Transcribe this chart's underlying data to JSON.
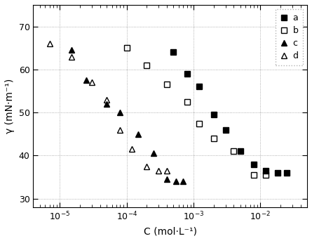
{
  "series_a": {
    "x": [
      0.0005,
      0.0008,
      0.0012,
      0.002,
      0.003,
      0.005,
      0.008,
      0.012,
      0.018,
      0.025
    ],
    "y": [
      64.0,
      59.0,
      56.0,
      49.5,
      46.0,
      41.0,
      38.0,
      36.5,
      36.0,
      36.0
    ],
    "marker": "s",
    "filled": true,
    "label": "a"
  },
  "series_b": {
    "x": [
      0.0001,
      0.0002,
      0.0004,
      0.0008,
      0.0012,
      0.002,
      0.004,
      0.008,
      0.012
    ],
    "y": [
      65.0,
      61.0,
      56.5,
      52.5,
      47.5,
      44.0,
      41.0,
      35.5,
      35.5
    ],
    "marker": "s",
    "filled": false,
    "label": "b"
  },
  "series_c": {
    "x": [
      1.5e-05,
      2.5e-05,
      5e-05,
      8e-05,
      0.00015,
      0.00025,
      0.0004,
      0.00055,
      0.0007
    ],
    "y": [
      64.5,
      57.5,
      52.0,
      50.0,
      45.0,
      40.5,
      34.5,
      34.0,
      34.0
    ],
    "marker": "^",
    "filled": true,
    "label": "c"
  },
  "series_d": {
    "x": [
      7e-06,
      1.5e-05,
      3e-05,
      5e-05,
      8e-05,
      0.00012,
      0.0002,
      0.0003,
      0.0004
    ],
    "y": [
      66.0,
      63.0,
      57.0,
      53.0,
      46.0,
      41.5,
      37.5,
      36.5,
      36.5
    ],
    "marker": "^",
    "filled": false,
    "label": "d"
  },
  "xlabel": "C (mol·L⁻¹)",
  "ylabel": "γ (mN·m⁻¹)",
  "xlim": [
    4e-06,
    0.05
  ],
  "ylim": [
    28,
    75
  ],
  "yticks": [
    30,
    40,
    50,
    60,
    70
  ],
  "legend_loc": "upper right",
  "marker_size": 6,
  "marker_edge_width": 1.0
}
